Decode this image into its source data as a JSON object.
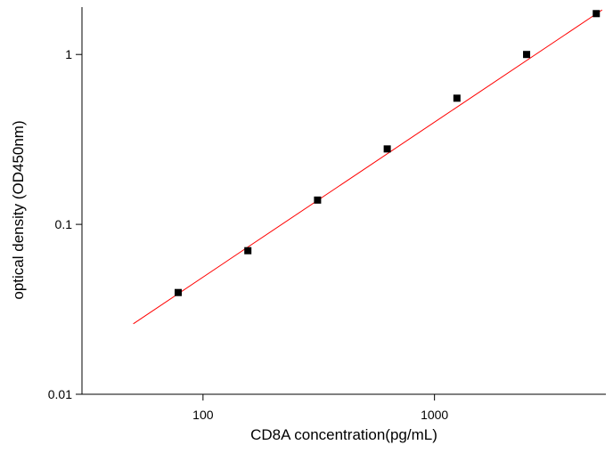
{
  "chart_data": {
    "type": "scatter",
    "x_label": "CD8A  concentration(pg/mL)",
    "y_label": "optical density (OD450nm)",
    "x_log": true,
    "y_log": true,
    "xlim": [
      30,
      5500
    ],
    "ylim": [
      0.01,
      1.9
    ],
    "xticks": [
      100,
      1000
    ],
    "yticks": [
      0.01,
      0.1,
      1
    ],
    "series": [
      {
        "kind": "scatter",
        "color": "#000000",
        "x": [
          78.125,
          156.25,
          312.5,
          625,
          1250,
          2500,
          5000
        ],
        "values": [
          0.0397,
          0.07,
          0.139,
          0.278,
          0.553,
          1.0,
          1.74
        ]
      },
      {
        "kind": "line",
        "color": "#ff0000",
        "x": [
          50,
          5300
        ],
        "values": [
          0.026,
          1.83
        ]
      }
    ]
  }
}
